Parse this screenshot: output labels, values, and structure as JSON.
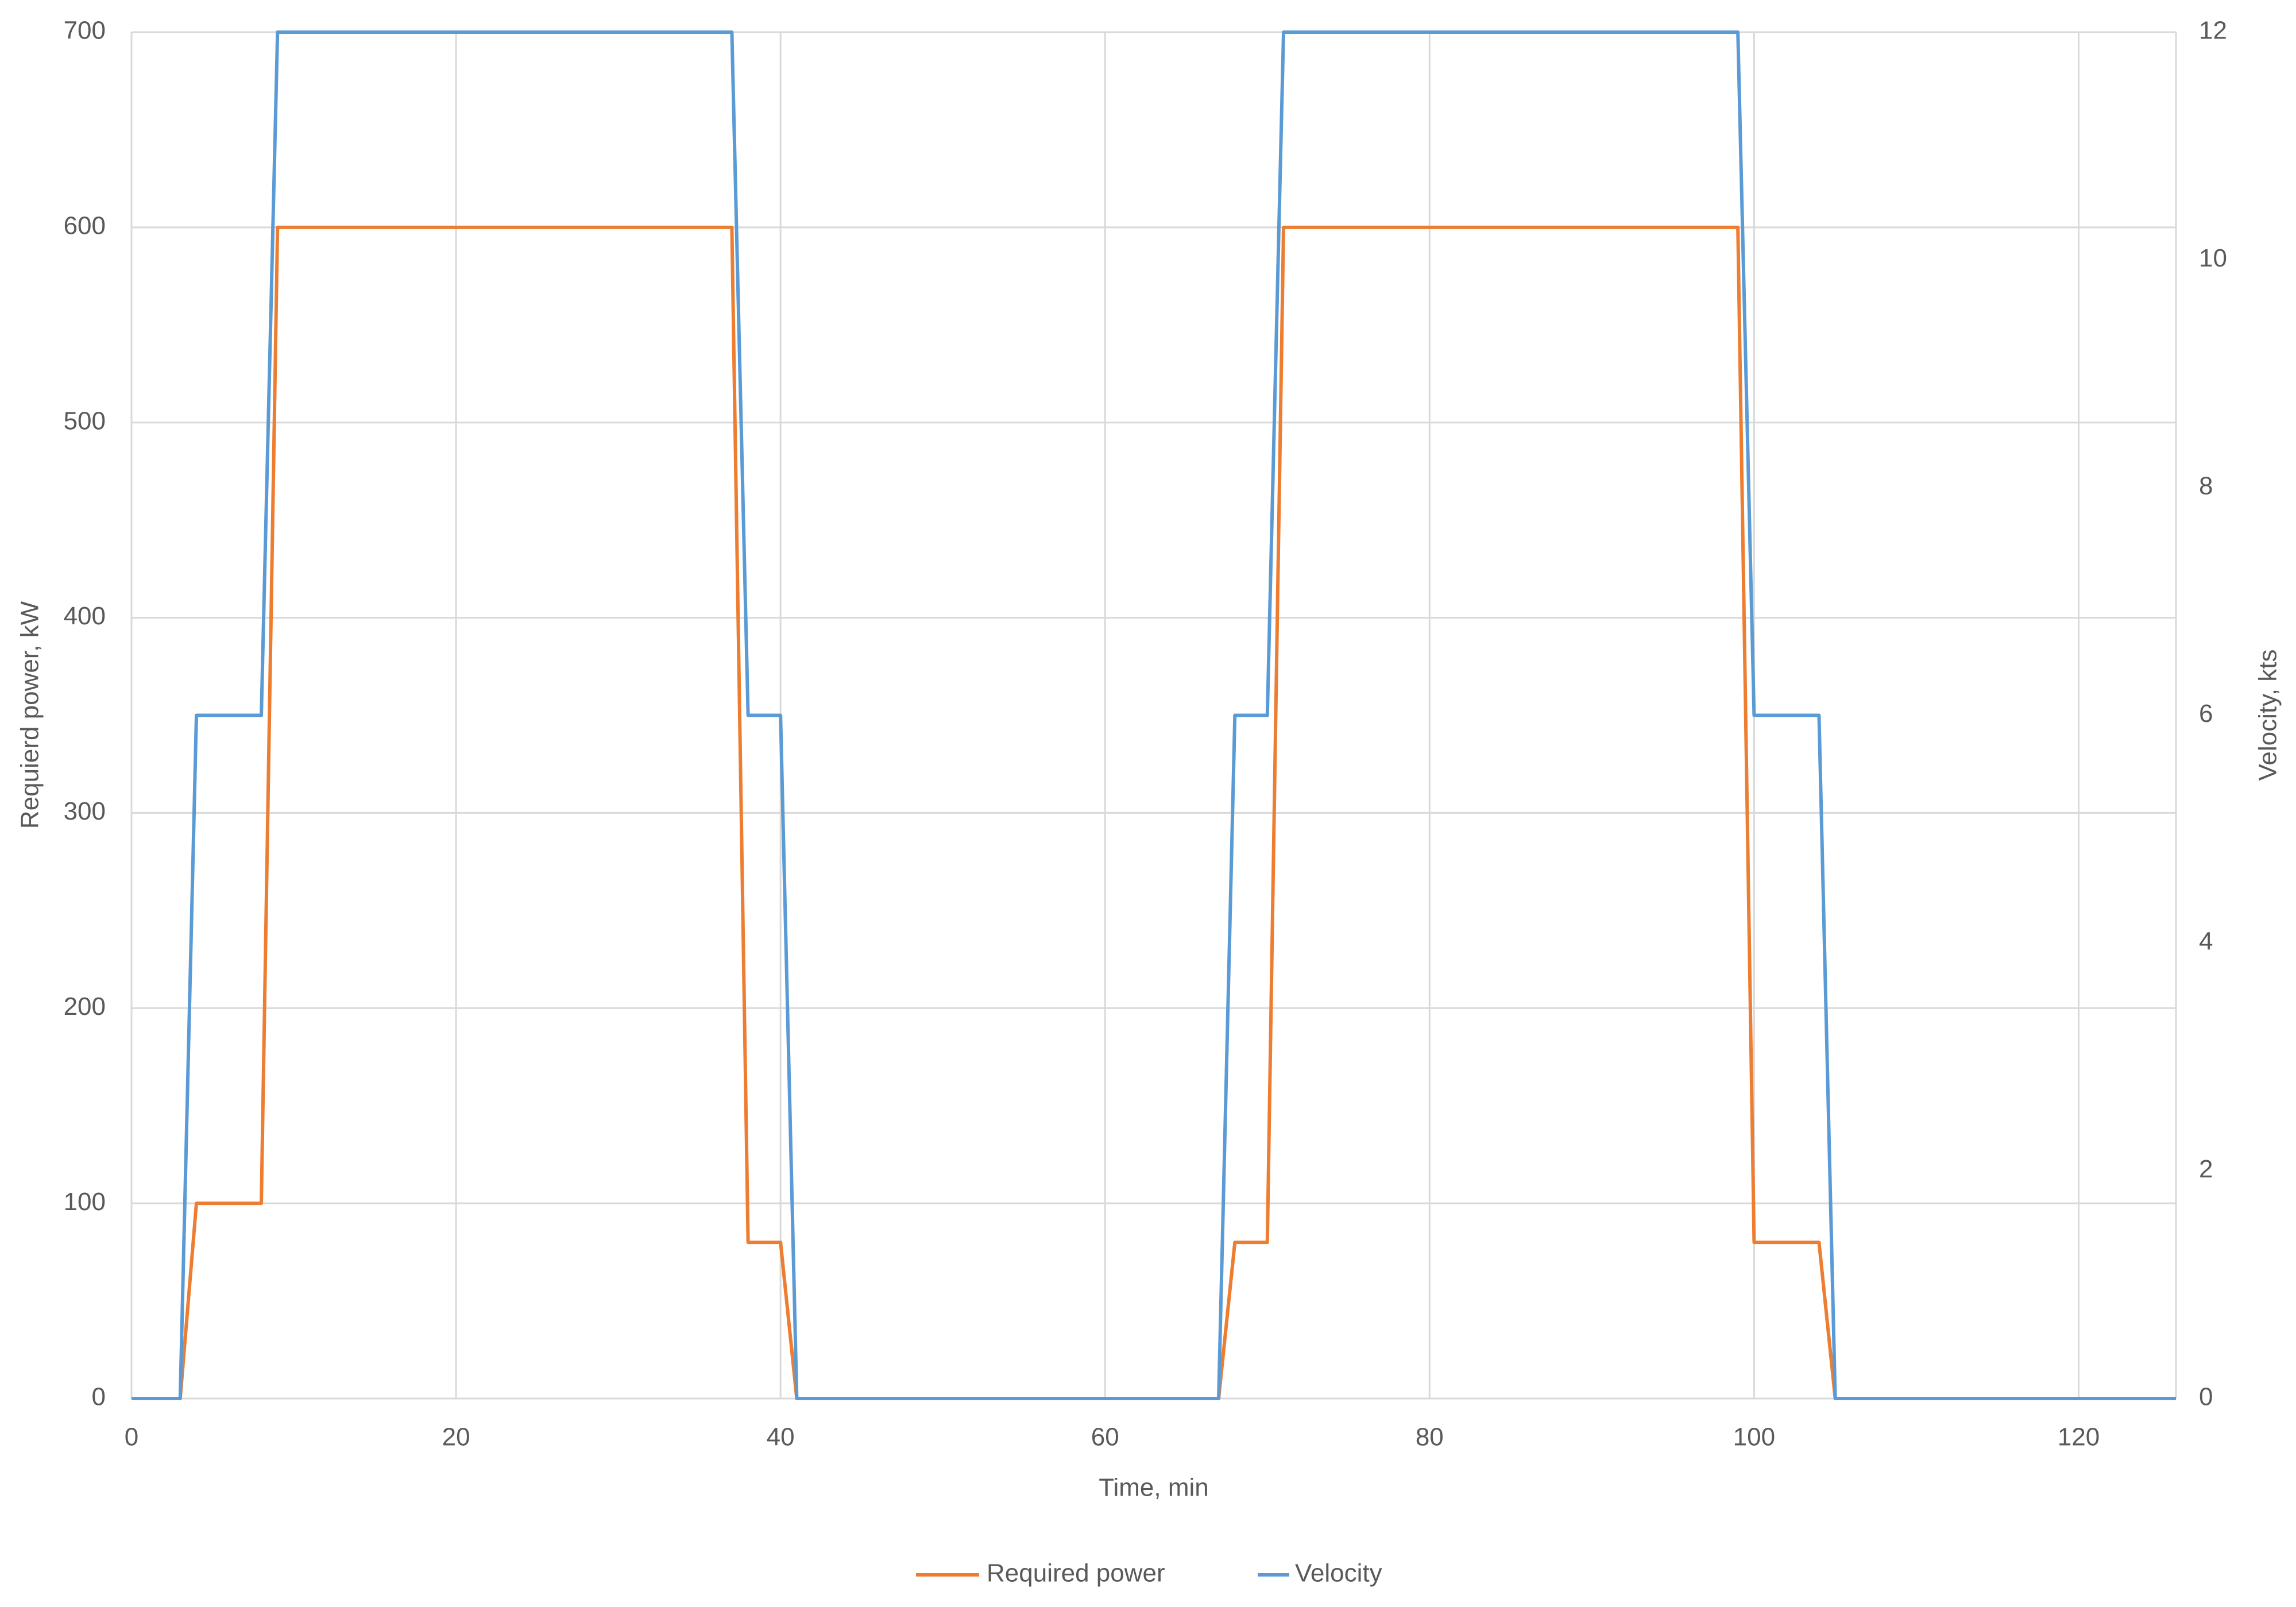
{
  "chart_data": {
    "type": "line",
    "x_label": "Time, min",
    "y_label": "Requierd power, kW",
    "y2_label": "Velocity, kts",
    "x": [
      0,
      3,
      4,
      8,
      9,
      37,
      38,
      40,
      41,
      67,
      68,
      70,
      71,
      99,
      100,
      104,
      105,
      126
    ],
    "series": [
      {
        "name": "Required power",
        "color": "#ed7d31",
        "axis": "y",
        "values": [
          0,
          0,
          100,
          100,
          600,
          600,
          80,
          80,
          0,
          0,
          80,
          80,
          600,
          600,
          80,
          80,
          0,
          0
        ]
      },
      {
        "name": "Velocity",
        "color": "#5b9bd5",
        "axis": "y2",
        "values": [
          0,
          0,
          6,
          6,
          12,
          12,
          6,
          6,
          0,
          0,
          6,
          6,
          12,
          12,
          6,
          6,
          0,
          0
        ]
      }
    ],
    "xlim": [
      0,
      126
    ],
    "xticks": [
      0,
      20,
      40,
      60,
      80,
      100,
      120
    ],
    "ylim": [
      0,
      700
    ],
    "yticks": [
      0,
      100,
      200,
      300,
      400,
      500,
      600,
      700
    ],
    "y2lim": [
      0,
      12
    ],
    "y2ticks": [
      0,
      2,
      4,
      6,
      8,
      10,
      12
    ],
    "grid": true,
    "legend": "bottom"
  }
}
